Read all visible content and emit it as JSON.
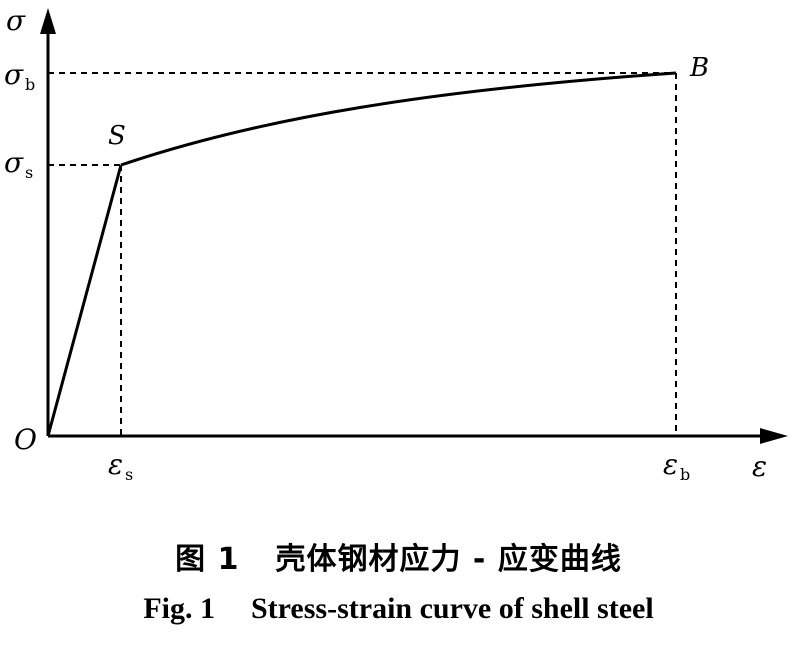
{
  "diagram": {
    "axis_y_label": "σ",
    "axis_x_label": "ε",
    "origin_label": "O",
    "sigma_b": {
      "sym": "σ",
      "sub": "b"
    },
    "sigma_s": {
      "sym": "σ",
      "sub": "s"
    },
    "eps_s": {
      "sym": "ε",
      "sub": "s"
    },
    "eps_b": {
      "sym": "ε",
      "sub": "b"
    },
    "point_s_label": "S",
    "point_b_label": "B"
  },
  "caption": {
    "cn_number": "图 1",
    "cn_title": "壳体钢材应力 - 应变曲线",
    "en_number": "Fig. 1",
    "en_title": "Stress-strain curve of shell steel"
  }
}
